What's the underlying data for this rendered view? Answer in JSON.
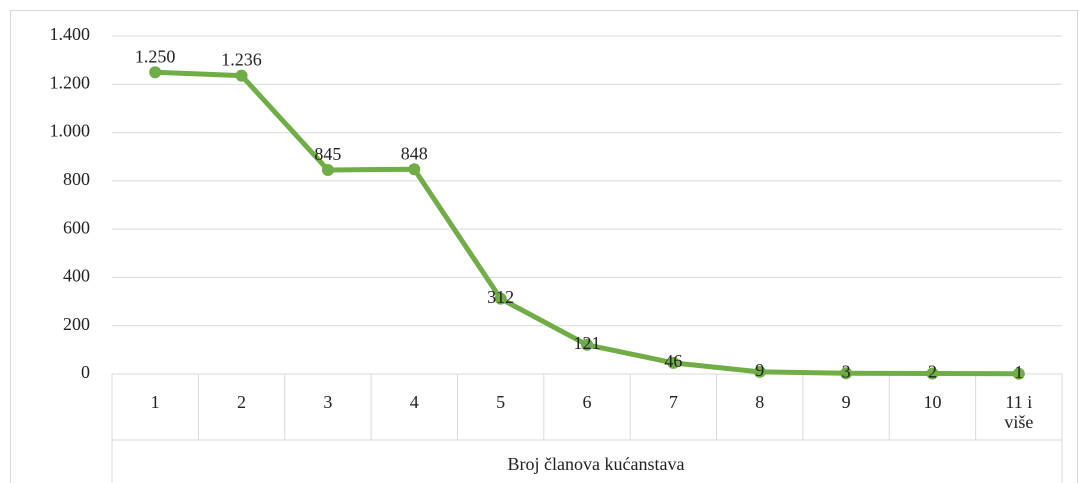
{
  "chart_data": {
    "type": "line",
    "x_label": "Broj članova kućanstava",
    "categories": [
      "1",
      "2",
      "3",
      "4",
      "5",
      "6",
      "7",
      "8",
      "9",
      "10",
      "11 i više"
    ],
    "values": [
      1250,
      1236,
      845,
      848,
      312,
      121,
      46,
      9,
      3,
      2,
      1
    ],
    "value_labels": [
      "1.250",
      "1.236",
      "845",
      "848",
      "312",
      "121",
      "46",
      "9",
      "3",
      "2",
      "1"
    ],
    "color": "#70ad47",
    "ylim": [
      0,
      1400
    ],
    "yticks": [
      0,
      200,
      400,
      600,
      800,
      {
        "value": 1000,
        "label": "1.000"
      },
      {
        "value": 1200,
        "label": "1.200"
      },
      {
        "value": 1400,
        "label": "1.400"
      }
    ],
    "grid": true
  }
}
